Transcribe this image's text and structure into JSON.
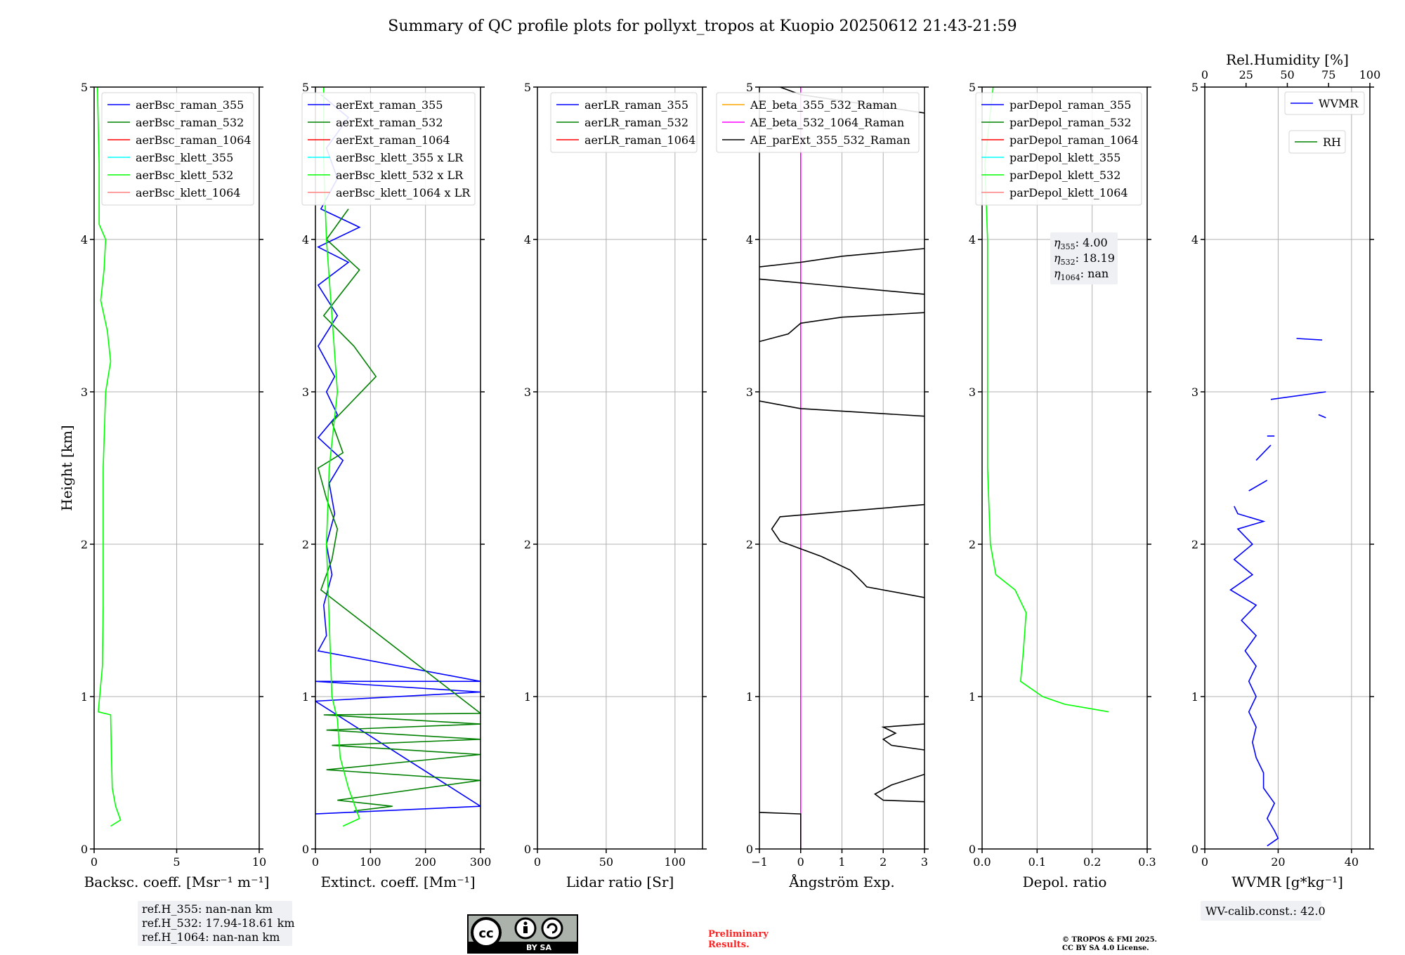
{
  "figure": {
    "title": "Summary of QC profile plots for pollyxt_tropos at Kuopio 20250612 21:43-21:59",
    "preliminary_text": [
      "Preliminary",
      "Results."
    ],
    "copyright_text": [
      "© TROPOS & FMI 2025.",
      "CC BY SA 4.0 License."
    ],
    "license_badge": "BY SA"
  },
  "annotations": {
    "ref_heights": [
      "ref.H_355: nan-nan km",
      "ref.H_532: 17.94-18.61 km",
      "ref.H_1064: nan-nan km"
    ],
    "eta": [
      {
        "sub": "355",
        "value": ": 4.00"
      },
      {
        "sub": "532",
        "value": ": 18.19"
      },
      {
        "sub": "1064",
        "value": ": nan"
      }
    ],
    "wv_calib": "WV-calib.const.: 42.0"
  },
  "colors": {
    "raman_355": "#0000ff",
    "raman_532": "#008000",
    "raman_1064": "#ff0000",
    "klett_355": "#00ffff",
    "klett_532": "#00ff00",
    "klett_1064": "#ff8080",
    "ae_355_532": "#ffa500",
    "ae_532_1064": "#ff00ff",
    "ae_parext": "#000000",
    "grid": "#b0b0b0"
  },
  "chart_data": [
    {
      "type": "line",
      "id": "backscatter",
      "xlabel": "Backsc. coeff. [Msr⁻¹ m⁻¹]",
      "ylabel": "Height [km]",
      "xlim": [
        0,
        10
      ],
      "ylim": [
        0,
        5
      ],
      "xticks": [
        0,
        5,
        10
      ],
      "yticks": [
        0,
        1,
        2,
        3,
        4,
        5
      ],
      "grid": true,
      "legend_position": "top-right",
      "series": [
        {
          "name": "aerBsc_raman_355",
          "color": "#0000ff",
          "points": []
        },
        {
          "name": "aerBsc_raman_532",
          "color": "#008000",
          "points": []
        },
        {
          "name": "aerBsc_raman_1064",
          "color": "#ff0000",
          "points": []
        },
        {
          "name": "aerBsc_klett_355",
          "color": "#00ffff",
          "points": []
        },
        {
          "name": "aerBsc_klett_532",
          "color": "#00ff00",
          "points": [
            [
              1.0,
              0.15
            ],
            [
              1.6,
              0.19
            ],
            [
              1.3,
              0.28
            ],
            [
              1.1,
              0.4
            ],
            [
              1.05,
              0.6
            ],
            [
              1.0,
              0.88
            ],
            [
              0.25,
              0.9
            ],
            [
              0.5,
              1.2
            ],
            [
              0.55,
              1.6
            ],
            [
              0.55,
              2.0
            ],
            [
              0.55,
              2.5
            ],
            [
              0.7,
              3.0
            ],
            [
              1.0,
              3.2
            ],
            [
              0.8,
              3.4
            ],
            [
              0.4,
              3.6
            ],
            [
              0.6,
              3.8
            ],
            [
              0.7,
              4.0
            ],
            [
              0.3,
              4.1
            ],
            [
              0.3,
              4.5
            ],
            [
              0.2,
              5.0
            ]
          ]
        },
        {
          "name": "aerBsc_klett_1064",
          "color": "#ff8080",
          "points": []
        }
      ]
    },
    {
      "type": "line",
      "id": "extinction",
      "xlabel": "Extinct. coeff. [Mm⁻¹]",
      "xlim": [
        0,
        300
      ],
      "ylim": [
        0,
        5
      ],
      "xticks": [
        0,
        100,
        200,
        300
      ],
      "yticks": [
        0,
        1,
        2,
        3,
        4,
        5
      ],
      "grid": true,
      "legend_position": "top-right",
      "series": [
        {
          "name": "aerExt_raman_355",
          "color": "#0000ff",
          "points": [
            [
              0,
              0.23
            ],
            [
              300,
              0.28
            ],
            [
              0,
              0.97
            ],
            [
              300,
              1.03
            ],
            [
              0,
              1.1
            ],
            [
              300,
              1.1
            ],
            [
              5,
              1.3
            ],
            [
              20,
              1.4
            ],
            [
              15,
              1.6
            ],
            [
              30,
              1.8
            ],
            [
              20,
              2.0
            ],
            [
              35,
              2.2
            ],
            [
              25,
              2.4
            ],
            [
              50,
              2.55
            ],
            [
              5,
              2.7
            ],
            [
              40,
              2.85
            ],
            [
              20,
              3.0
            ],
            [
              35,
              3.1
            ],
            [
              5,
              3.3
            ],
            [
              40,
              3.5
            ],
            [
              5,
              3.7
            ],
            [
              60,
              3.85
            ],
            [
              5,
              3.95
            ],
            [
              80,
              4.08
            ],
            [
              10,
              4.2
            ],
            [
              40,
              4.4
            ],
            [
              20,
              4.6
            ],
            [
              60,
              4.8
            ],
            [
              10,
              4.95
            ]
          ]
        },
        {
          "name": "aerExt_raman_532",
          "color": "#008000",
          "points": [
            [
              70,
              0.25
            ],
            [
              140,
              0.28
            ],
            [
              40,
              0.32
            ],
            [
              300,
              0.45
            ],
            [
              20,
              0.52
            ],
            [
              300,
              0.62
            ],
            [
              30,
              0.68
            ],
            [
              300,
              0.72
            ],
            [
              20,
              0.78
            ],
            [
              300,
              0.82
            ],
            [
              15,
              0.88
            ],
            [
              300,
              0.89
            ],
            [
              10,
              1.7
            ],
            [
              30,
              1.9
            ],
            [
              40,
              2.1
            ],
            [
              20,
              2.3
            ],
            [
              5,
              2.5
            ],
            [
              50,
              2.6
            ],
            [
              30,
              2.8
            ],
            [
              110,
              3.1
            ],
            [
              70,
              3.3
            ],
            [
              15,
              3.5
            ],
            [
              80,
              3.8
            ],
            [
              20,
              4.0
            ],
            [
              60,
              4.2
            ]
          ]
        },
        {
          "name": "aerExt_raman_1064",
          "color": "#ff0000",
          "points": []
        },
        {
          "name": "aerBsc_klett_355 x LR",
          "color": "#00ffff",
          "points": []
        },
        {
          "name": "aerBsc_klett_532 x LR",
          "color": "#00ff00",
          "points": [
            [
              50,
              0.15
            ],
            [
              80,
              0.2
            ],
            [
              60,
              0.4
            ],
            [
              45,
              0.6
            ],
            [
              40,
              0.85
            ],
            [
              30,
              1.0
            ],
            [
              25,
              1.5
            ],
            [
              20,
              2.0
            ],
            [
              25,
              2.5
            ],
            [
              40,
              3.0
            ],
            [
              30,
              3.5
            ],
            [
              20,
              4.0
            ],
            [
              15,
              4.5
            ],
            [
              15,
              5.0
            ]
          ]
        },
        {
          "name": "aerBsc_klett_1064 x LR",
          "color": "#ff8080",
          "points": []
        }
      ]
    },
    {
      "type": "line",
      "id": "lidar_ratio",
      "xlabel": "Lidar ratio [Sr]",
      "xlim": [
        0,
        120
      ],
      "ylim": [
        0,
        5
      ],
      "xticks": [
        0,
        50,
        100
      ],
      "yticks": [
        0,
        1,
        2,
        3,
        4,
        5
      ],
      "grid": true,
      "legend_position": "top-right",
      "series": [
        {
          "name": "aerLR_raman_355",
          "color": "#0000ff",
          "points": []
        },
        {
          "name": "aerLR_raman_532",
          "color": "#008000",
          "points": []
        },
        {
          "name": "aerLR_raman_1064",
          "color": "#ff0000",
          "points": []
        }
      ]
    },
    {
      "type": "line",
      "id": "angstrom",
      "xlabel": "Ångström Exp.",
      "xlim": [
        -1,
        3
      ],
      "ylim": [
        0,
        5
      ],
      "xticks": [
        -1,
        0,
        1,
        2,
        3
      ],
      "yticks": [
        0,
        1,
        2,
        3,
        4,
        5
      ],
      "xtick_labels": [
        "−1",
        "0",
        "1",
        "2",
        "3"
      ],
      "grid": true,
      "legend_position": "top-right",
      "series": [
        {
          "name": "AE_beta_355_532_Raman",
          "color": "#ffa500",
          "points": []
        },
        {
          "name": "AE_beta_532_1064_Raman",
          "color": "#ff00ff",
          "points": [
            [
              0,
              0
            ],
            [
              0,
              5
            ]
          ]
        },
        {
          "name": "AE_parExt_355_532_Raman",
          "color": "#000000",
          "points": [
            [
              -1,
              0.24
            ],
            [
              0,
              0.23
            ],
            [
              0,
              0.0
            ],
            null,
            [
              3,
              0.31
            ],
            [
              2,
              0.32
            ],
            [
              1.8,
              0.36
            ],
            [
              2.2,
              0.42
            ],
            [
              3,
              0.49
            ],
            null,
            [
              3,
              0.65
            ],
            [
              2.2,
              0.68
            ],
            [
              2,
              0.72
            ],
            [
              2.3,
              0.76
            ],
            [
              2,
              0.8
            ],
            [
              3,
              0.82
            ],
            null,
            [
              3,
              1.65
            ],
            [
              1.6,
              1.72
            ],
            [
              1.5,
              1.75
            ],
            [
              1.2,
              1.83
            ],
            [
              0.5,
              1.92
            ],
            [
              -0.5,
              2.02
            ],
            [
              -0.7,
              2.1
            ],
            [
              -0.5,
              2.18
            ],
            [
              3,
              2.26
            ],
            null,
            [
              3,
              2.84
            ],
            [
              0,
              2.89
            ],
            [
              -1,
              2.94
            ],
            null,
            [
              -1,
              3.33
            ],
            [
              -0.3,
              3.38
            ],
            [
              0,
              3.45
            ],
            [
              1,
              3.49
            ],
            [
              3,
              3.52
            ],
            null,
            [
              3,
              3.64
            ],
            [
              -1,
              3.74
            ],
            null,
            [
              -1,
              3.82
            ],
            [
              0,
              3.85
            ],
            [
              1,
              3.89
            ],
            [
              3,
              3.94
            ],
            null,
            [
              -0.5,
              5.0
            ],
            [
              0,
              4.95
            ],
            [
              3,
              4.83
            ]
          ]
        }
      ]
    },
    {
      "type": "line",
      "id": "depol",
      "xlabel": "Depol. ratio",
      "xlim": [
        0,
        0.3
      ],
      "ylim": [
        0,
        5
      ],
      "xticks": [
        0.0,
        0.1,
        0.2,
        0.3
      ],
      "yticks": [
        0,
        1,
        2,
        3,
        4,
        5
      ],
      "xtick_labels": [
        "0.0",
        "0.1",
        "0.2",
        "0.3"
      ],
      "grid": true,
      "legend_position": "top-right",
      "series": [
        {
          "name": "parDepol_raman_355",
          "color": "#0000ff",
          "points": []
        },
        {
          "name": "parDepol_raman_532",
          "color": "#008000",
          "points": []
        },
        {
          "name": "parDepol_raman_1064",
          "color": "#ff0000",
          "points": []
        },
        {
          "name": "parDepol_klett_355",
          "color": "#00ffff",
          "points": []
        },
        {
          "name": "parDepol_klett_532",
          "color": "#00ff00",
          "points": [
            [
              0.23,
              0.9
            ],
            [
              0.15,
              0.95
            ],
            [
              0.11,
              1.0
            ],
            [
              0.07,
              1.1
            ],
            [
              0.075,
              1.3
            ],
            [
              0.08,
              1.55
            ],
            [
              0.06,
              1.7
            ],
            [
              0.025,
              1.8
            ],
            [
              0.015,
              2.0
            ],
            [
              0.01,
              2.5
            ],
            [
              0.01,
              3.0
            ],
            [
              0.01,
              3.5
            ],
            [
              0.01,
              4.0
            ],
            [
              0.005,
              4.5
            ],
            [
              0.02,
              5.0
            ]
          ]
        },
        {
          "name": "parDepol_klett_1064",
          "color": "#ff8080",
          "points": []
        }
      ]
    },
    {
      "type": "line",
      "id": "wvmr",
      "xlabel": "WVMR [g*kg⁻¹]",
      "x2label": "Rel.Humidity [%]",
      "xlim": [
        0,
        45
      ],
      "ylim": [
        0,
        5
      ],
      "xticks": [
        0,
        20,
        40
      ],
      "yticks": [
        0,
        1,
        2,
        3,
        4,
        5
      ],
      "x2lim": [
        0,
        100
      ],
      "x2ticks": [
        0,
        25,
        50,
        75,
        100
      ],
      "grid": true,
      "legend_position": "top-right",
      "series": [
        {
          "name": "WVMR",
          "color": "#0000ff",
          "points": [
            [
              17,
              0.02
            ],
            [
              20,
              0.07
            ],
            [
              19,
              0.12
            ],
            [
              17,
              0.2
            ],
            [
              19,
              0.3
            ],
            [
              16,
              0.4
            ],
            [
              16,
              0.5
            ],
            [
              14,
              0.6
            ],
            [
              13,
              0.7
            ],
            [
              14,
              0.8
            ],
            [
              12,
              0.9
            ],
            [
              14,
              1.0
            ],
            [
              12,
              1.1
            ],
            [
              14,
              1.2
            ],
            [
              11,
              1.3
            ],
            [
              14,
              1.4
            ],
            [
              10,
              1.5
            ],
            [
              14,
              1.6
            ],
            [
              7,
              1.7
            ],
            [
              13,
              1.8
            ],
            [
              8,
              1.9
            ],
            [
              13,
              2.0
            ],
            [
              9,
              2.1
            ],
            [
              16,
              2.15
            ],
            [
              9,
              2.2
            ],
            [
              8,
              2.25
            ],
            null,
            [
              12,
              2.35
            ],
            [
              17,
              2.42
            ],
            null,
            [
              14,
              2.55
            ],
            [
              18,
              2.65
            ],
            null,
            [
              17,
              2.71
            ],
            [
              19,
              2.71
            ],
            null,
            [
              18,
              2.95
            ],
            [
              33,
              3.0
            ],
            null,
            [
              25,
              3.35
            ],
            [
              32,
              3.34
            ],
            null,
            [
              31,
              2.85
            ],
            [
              33,
              2.83
            ]
          ]
        },
        {
          "name": "RH",
          "color": "#008000",
          "points": []
        }
      ]
    }
  ]
}
